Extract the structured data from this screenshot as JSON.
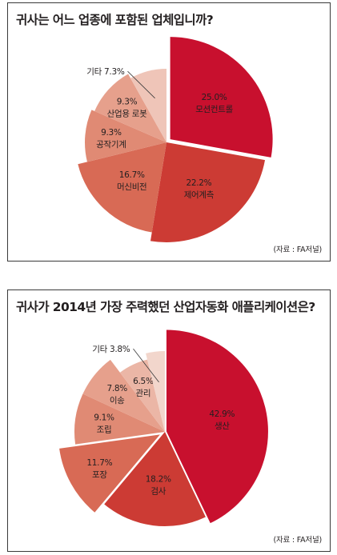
{
  "chart_data": [
    {
      "type": "pie",
      "title": "귀사는 어느 업종에 포함된 업체입니까?",
      "source": "(자료 : FA저널)",
      "slices": [
        {
          "label": "모션컨트롤",
          "value_label": "25.0%",
          "value": 25.0,
          "color": "#c8102e",
          "exploded": true
        },
        {
          "label": "제어계측",
          "value_label": "22.2%",
          "value": 22.2,
          "color": "#cc3b34"
        },
        {
          "label": "머신비전",
          "value_label": "16.7%",
          "value": 16.7,
          "color": "#d86a55"
        },
        {
          "label": "공작기계",
          "value_label": "9.3%",
          "value": 9.3,
          "color": "#e08a74"
        },
        {
          "label": "산업용 로봇",
          "value_label": "9.3%",
          "value": 9.3,
          "color": "#e6a08c"
        },
        {
          "label": "기타",
          "value_label": "7.3%",
          "value": 7.3,
          "color": "#efc5b8"
        }
      ]
    },
    {
      "type": "pie",
      "title": "귀사가 2014년 가장 주력했던 산업자동화 애플리케이션은?",
      "source": "(자료 : FA저널)",
      "slices": [
        {
          "label": "생산",
          "value_label": "42.9%",
          "value": 42.9,
          "color": "#c8102e",
          "exploded": true
        },
        {
          "label": "검사",
          "value_label": "18.2%",
          "value": 18.2,
          "color": "#cc3b34"
        },
        {
          "label": "포장",
          "value_label": "11.7%",
          "value": 11.7,
          "color": "#d86a55",
          "exploded": true
        },
        {
          "label": "조립",
          "value_label": "9.1%",
          "value": 9.1,
          "color": "#e08a74"
        },
        {
          "label": "이송",
          "value_label": "7.8%",
          "value": 7.8,
          "color": "#e6a08c"
        },
        {
          "label": "관리",
          "value_label": "6.5%",
          "value": 6.5,
          "color": "#ebb6a6"
        },
        {
          "label": "기타",
          "value_label": "3.8%",
          "value": 3.8,
          "color": "#f2d6cc"
        }
      ]
    }
  ]
}
